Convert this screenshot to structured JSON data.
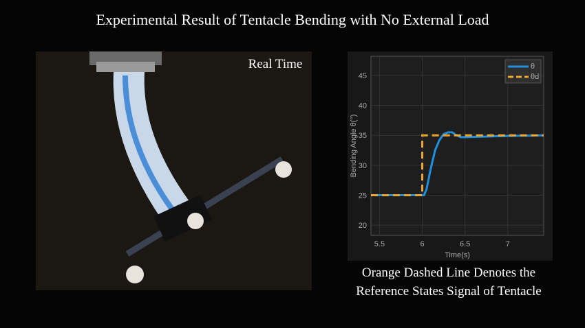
{
  "header": {
    "title": "Experimental Result of Tentacle Bending with No External Load"
  },
  "photo": {
    "label": "Real Time"
  },
  "caption": {
    "lines": [
      "Orange Dashed Line Denotes the",
      "Reference States Signal of Tentacle"
    ]
  },
  "chart_data": {
    "type": "line",
    "x_label": "Time(s)",
    "y_label": "Bending Angle θ(°)",
    "xlim": [
      5.4,
      7.42
    ],
    "ylim": [
      18.3,
      48.2
    ],
    "xticks": [
      5.5,
      6,
      6.5,
      7
    ],
    "yticks": [
      20,
      25,
      30,
      35,
      40,
      45
    ],
    "grid": true,
    "legend": "upper right",
    "series": [
      {
        "name": "θ",
        "color": "#1f8fe0",
        "dash": false,
        "x": [
          5.4,
          6.02,
          6.05,
          6.1,
          6.15,
          6.2,
          6.25,
          6.3,
          6.35,
          6.4,
          6.45,
          6.5,
          7,
          7.42
        ],
        "values": [
          25,
          25,
          26,
          29.5,
          32.5,
          34.2,
          35.2,
          35.5,
          35.5,
          35,
          34.7,
          34.7,
          34.9,
          35
        ]
      },
      {
        "name": "θd",
        "color": "#f0a830",
        "dash": true,
        "x": [
          5.4,
          6,
          6,
          7.42
        ],
        "values": [
          25,
          25,
          35,
          35
        ]
      }
    ]
  }
}
